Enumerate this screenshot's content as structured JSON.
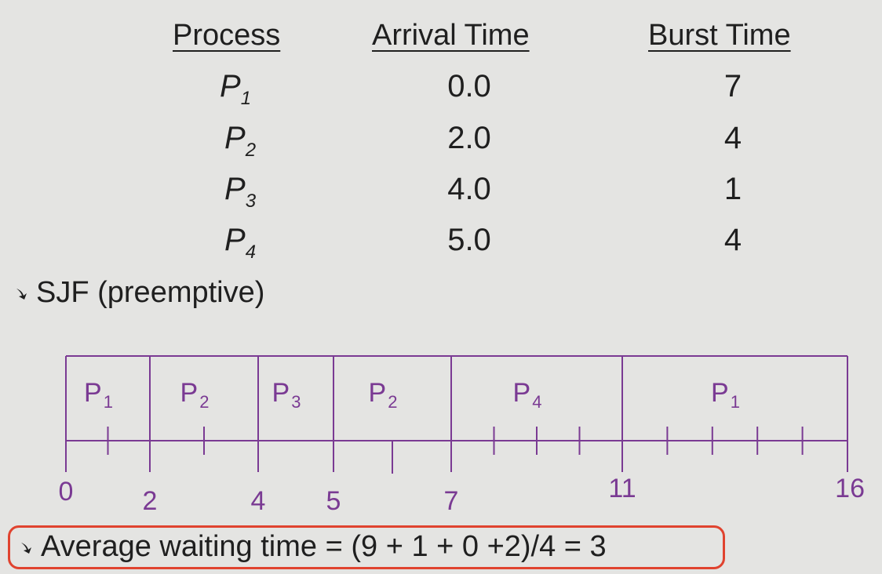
{
  "table": {
    "headers": {
      "process": "Process",
      "arrival": "Arrival Time",
      "burst": "Burst Time"
    },
    "rows": [
      {
        "name": "P",
        "sub": "1",
        "arrival": "0.0",
        "burst": "7"
      },
      {
        "name": "P",
        "sub": "2",
        "arrival": "2.0",
        "burst": "4"
      },
      {
        "name": "P",
        "sub": "3",
        "arrival": "4.0",
        "burst": "1"
      },
      {
        "name": "P",
        "sub": "4",
        "arrival": "5.0",
        "burst": "4"
      }
    ]
  },
  "bullets": {
    "sjf": "SJF (preemptive)",
    "avg": "Average waiting time = (9 + 1 + 0 +2)/4 = 3"
  },
  "gantt": {
    "segments": [
      {
        "label": "P",
        "sub": "1",
        "start": 0,
        "end": 2
      },
      {
        "label": "P",
        "sub": "2",
        "start": 2,
        "end": 4
      },
      {
        "label": "P",
        "sub": "3",
        "start": 4,
        "end": 5
      },
      {
        "label": "P",
        "sub": "2",
        "start": 5,
        "end": 7
      },
      {
        "label": "P",
        "sub": "4",
        "start": 7,
        "end": 11
      },
      {
        "label": "P",
        "sub": "1",
        "start": 11,
        "end": 16
      }
    ],
    "time_labels": [
      "0",
      "2",
      "4",
      "5",
      "7",
      "11",
      "16"
    ]
  },
  "colors": {
    "gantt": "#7a3a93",
    "highlight": "#e0432f",
    "text": "#1f1f1f",
    "background": "#e4e4e2"
  }
}
